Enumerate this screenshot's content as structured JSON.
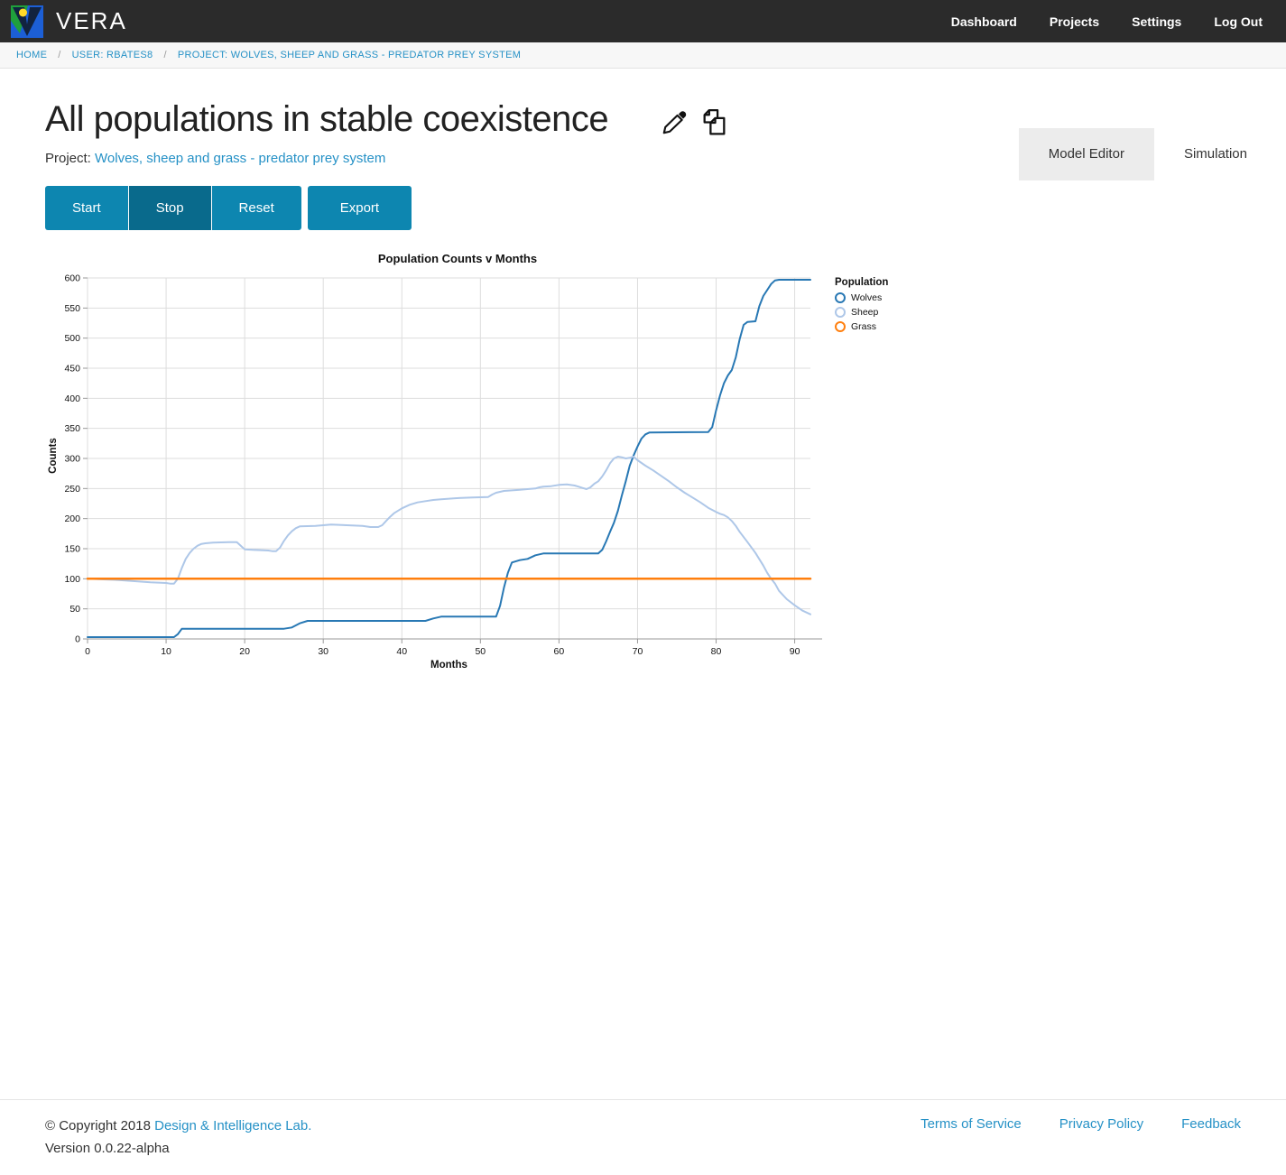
{
  "navbar": {
    "brand": "VERA",
    "links": [
      "Dashboard",
      "Projects",
      "Settings",
      "Log Out"
    ]
  },
  "breadcrumb": {
    "separator": "/",
    "items": [
      "HOME",
      "USER: RBATES8",
      "PROJECT: WOLVES, SHEEP AND GRASS - PREDATOR PREY SYSTEM"
    ]
  },
  "page": {
    "title": "All populations in stable coexistence",
    "project_label": "Project:",
    "project_link": "Wolves, sheep and grass - predator prey system"
  },
  "tabs": [
    {
      "label": "Model Editor",
      "active": true
    },
    {
      "label": "Simulation",
      "active": false
    }
  ],
  "controls": {
    "buttons": [
      "Start",
      "Stop",
      "Reset",
      "Export"
    ],
    "active_index": 1
  },
  "colors": {
    "accent": "#0d86b0",
    "accent_active": "#096a8c",
    "link": "#2591c6",
    "navbar_bg": "#2b2b2b"
  },
  "chart_data": {
    "type": "line",
    "title": "Population Counts v Months",
    "xlabel": "Months",
    "ylabel": "Counts",
    "legend_title": "Population",
    "legend_position": "right",
    "grid": true,
    "xlim": [
      0,
      92
    ],
    "ylim": [
      0,
      600
    ],
    "xticks": [
      0,
      10,
      20,
      30,
      40,
      50,
      60,
      70,
      80,
      90
    ],
    "yticks": [
      0,
      50,
      100,
      150,
      200,
      250,
      300,
      350,
      400,
      450,
      500,
      550,
      600
    ],
    "series": [
      {
        "name": "Wolves",
        "color": "#2878b4",
        "width": 2,
        "points": [
          [
            0,
            3
          ],
          [
            10,
            3
          ],
          [
            11,
            3
          ],
          [
            11.5,
            8
          ],
          [
            12,
            17
          ],
          [
            25,
            17
          ],
          [
            26,
            19
          ],
          [
            27,
            26
          ],
          [
            28,
            30
          ],
          [
            43,
            30
          ],
          [
            44,
            34
          ],
          [
            45,
            37
          ],
          [
            52,
            37
          ],
          [
            52.5,
            55
          ],
          [
            53,
            85
          ],
          [
            53.5,
            110
          ],
          [
            54,
            127
          ],
          [
            55,
            131
          ],
          [
            56,
            133
          ],
          [
            56.5,
            136
          ],
          [
            57,
            139
          ],
          [
            58,
            142
          ],
          [
            65,
            142
          ],
          [
            65.5,
            148
          ],
          [
            66,
            162
          ],
          [
            66.5,
            178
          ],
          [
            67,
            193
          ],
          [
            67.5,
            213
          ],
          [
            68,
            238
          ],
          [
            68.5,
            262
          ],
          [
            69,
            288
          ],
          [
            69.5,
            305
          ],
          [
            70,
            320
          ],
          [
            70.5,
            333
          ],
          [
            71,
            340
          ],
          [
            71.5,
            343
          ],
          [
            79,
            344
          ],
          [
            79.5,
            352
          ],
          [
            80,
            380
          ],
          [
            80.5,
            405
          ],
          [
            81,
            425
          ],
          [
            81.5,
            438
          ],
          [
            82,
            447
          ],
          [
            82.5,
            468
          ],
          [
            83,
            498
          ],
          [
            83.5,
            522
          ],
          [
            84,
            527
          ],
          [
            85,
            528
          ],
          [
            85.5,
            553
          ],
          [
            86,
            570
          ],
          [
            87,
            590
          ],
          [
            87.5,
            596
          ],
          [
            88,
            597
          ],
          [
            92,
            597
          ]
        ]
      },
      {
        "name": "Sheep",
        "color": "#aec7e8",
        "width": 2,
        "points": [
          [
            0,
            100
          ],
          [
            2,
            99
          ],
          [
            4,
            98
          ],
          [
            6,
            96
          ],
          [
            8,
            94
          ],
          [
            10,
            93
          ],
          [
            10.5,
            92
          ],
          [
            11,
            92
          ],
          [
            11.5,
            100
          ],
          [
            12,
            118
          ],
          [
            12.5,
            133
          ],
          [
            13,
            143
          ],
          [
            13.5,
            150
          ],
          [
            14,
            155
          ],
          [
            14.5,
            158
          ],
          [
            15,
            159
          ],
          [
            16,
            160
          ],
          [
            18,
            161
          ],
          [
            19,
            161
          ],
          [
            19.5,
            155
          ],
          [
            20,
            149
          ],
          [
            21,
            148
          ],
          [
            23,
            147
          ],
          [
            23.5,
            146
          ],
          [
            24,
            146
          ],
          [
            24.5,
            152
          ],
          [
            25,
            163
          ],
          [
            25.5,
            172
          ],
          [
            26,
            179
          ],
          [
            26.5,
            184
          ],
          [
            27,
            187
          ],
          [
            29,
            188
          ],
          [
            31,
            190
          ],
          [
            33,
            189
          ],
          [
            35,
            188
          ],
          [
            36,
            186
          ],
          [
            37,
            186
          ],
          [
            37.5,
            189
          ],
          [
            38,
            196
          ],
          [
            38.5,
            203
          ],
          [
            39,
            209
          ],
          [
            40,
            217
          ],
          [
            41,
            223
          ],
          [
            42,
            227
          ],
          [
            43,
            229
          ],
          [
            44,
            231
          ],
          [
            45,
            232
          ],
          [
            47,
            234
          ],
          [
            49,
            235
          ],
          [
            51,
            236
          ],
          [
            51.5,
            240
          ],
          [
            52,
            243
          ],
          [
            53,
            246
          ],
          [
            55,
            248
          ],
          [
            57,
            250
          ],
          [
            57.5,
            252
          ],
          [
            58,
            253
          ],
          [
            59,
            254
          ],
          [
            60,
            256
          ],
          [
            61,
            257
          ],
          [
            62,
            255
          ],
          [
            62.5,
            253
          ],
          [
            63,
            251
          ],
          [
            63.5,
            249
          ],
          [
            64,
            252
          ],
          [
            64.5,
            258
          ],
          [
            65,
            262
          ],
          [
            65.5,
            270
          ],
          [
            66,
            280
          ],
          [
            66.5,
            292
          ],
          [
            67,
            300
          ],
          [
            67.5,
            303
          ],
          [
            68,
            302
          ],
          [
            68.5,
            300
          ],
          [
            69,
            301
          ],
          [
            69.5,
            303
          ],
          [
            70,
            297
          ],
          [
            71,
            288
          ],
          [
            72,
            280
          ],
          [
            73,
            271
          ],
          [
            74,
            262
          ],
          [
            75,
            252
          ],
          [
            76,
            243
          ],
          [
            77,
            235
          ],
          [
            78,
            227
          ],
          [
            79,
            218
          ],
          [
            80,
            211
          ],
          [
            80.5,
            208
          ],
          [
            81,
            206
          ],
          [
            81.5,
            202
          ],
          [
            82,
            196
          ],
          [
            82.5,
            188
          ],
          [
            83,
            178
          ],
          [
            84,
            161
          ],
          [
            85,
            143
          ],
          [
            86,
            122
          ],
          [
            86.5,
            110
          ],
          [
            87,
            100
          ],
          [
            87.5,
            92
          ],
          [
            88,
            80
          ],
          [
            89,
            66
          ],
          [
            90,
            56
          ],
          [
            91,
            47
          ],
          [
            92,
            41
          ]
        ]
      },
      {
        "name": "Grass",
        "color": "#ff7f0e",
        "width": 2.5,
        "points": [
          [
            0,
            100
          ],
          [
            92,
            100
          ]
        ]
      }
    ]
  },
  "footer": {
    "copyright_prefix": "© Copyright 2018 ",
    "copyright_link": "Design & Intelligence Lab.",
    "version": "Version 0.0.22-alpha",
    "links": [
      "Terms of Service",
      "Privacy Policy",
      "Feedback"
    ]
  }
}
